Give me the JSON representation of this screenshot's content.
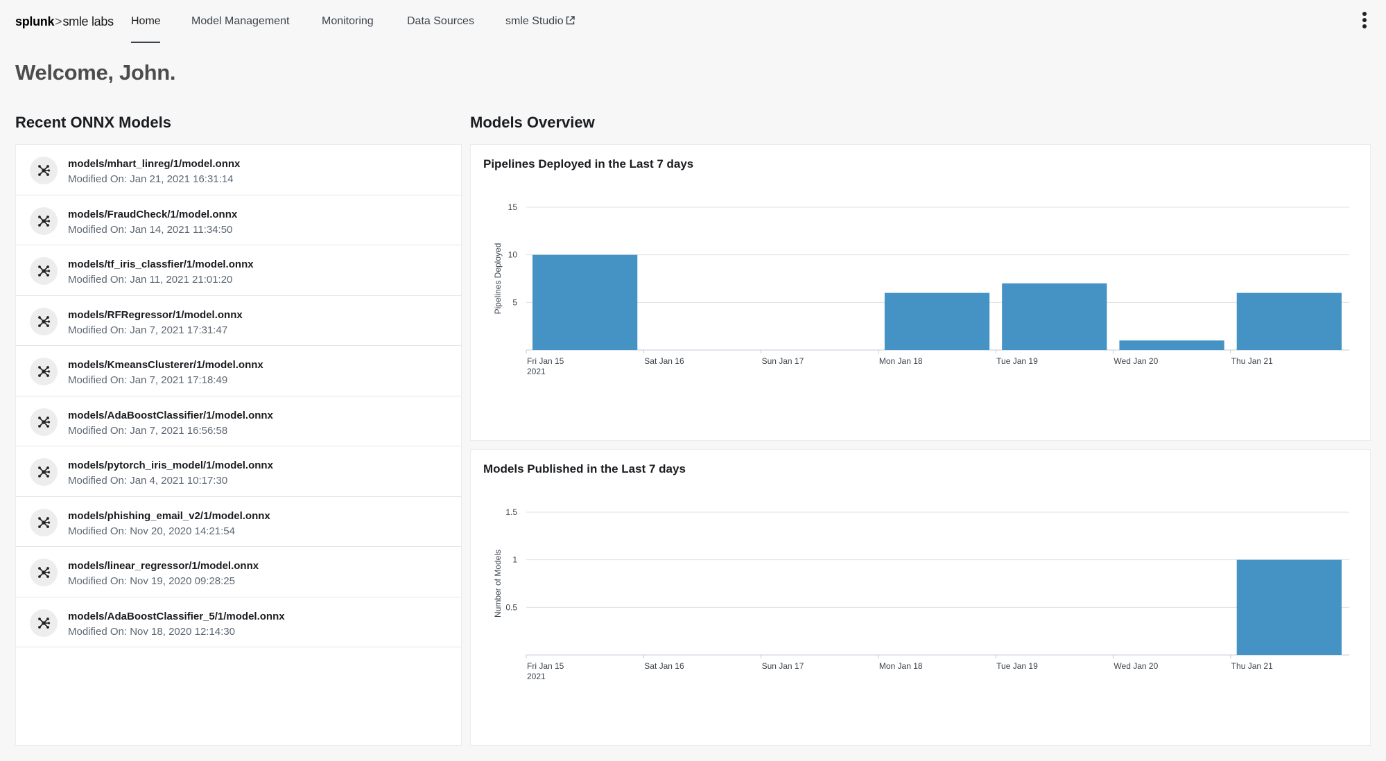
{
  "brand": {
    "name_bold": "splunk",
    "separator": ">",
    "name_rest": "smle labs"
  },
  "nav": {
    "items": [
      {
        "label": "Home",
        "active": true
      },
      {
        "label": "Model Management"
      },
      {
        "label": "Monitoring"
      },
      {
        "label": "Data Sources"
      },
      {
        "label": "smle Studio",
        "external": true
      }
    ]
  },
  "welcome": "Welcome, John.",
  "recent_models": {
    "title": "Recent ONNX Models",
    "modified_prefix": "Modified On:",
    "items": [
      {
        "name": "models/mhart_linreg/1/model.onnx",
        "modified": "Modified On: Jan 21, 2021 16:31:14"
      },
      {
        "name": "models/FraudCheck/1/model.onnx",
        "modified": "Modified On: Jan 14, 2021 11:34:50"
      },
      {
        "name": "models/tf_iris_classfier/1/model.onnx",
        "modified": "Modified On: Jan 11, 2021 21:01:20"
      },
      {
        "name": "models/RFRegressor/1/model.onnx",
        "modified": "Modified On: Jan 7, 2021 17:31:47"
      },
      {
        "name": "models/KmeansClusterer/1/model.onnx",
        "modified": "Modified On: Jan 7, 2021 17:18:49"
      },
      {
        "name": "models/AdaBoostClassifier/1/model.onnx",
        "modified": "Modified On: Jan 7, 2021 16:56:58"
      },
      {
        "name": "models/pytorch_iris_model/1/model.onnx",
        "modified": "Modified On: Jan 4, 2021 10:17:30"
      },
      {
        "name": "models/phishing_email_v2/1/model.onnx",
        "modified": "Modified On: Nov 20, 2020 14:21:54"
      },
      {
        "name": "models/linear_regressor/1/model.onnx",
        "modified": "Modified On: Nov 19, 2020 09:28:25"
      },
      {
        "name": "models/AdaBoostClassifier_5/1/model.onnx",
        "modified": "Modified On: Nov 18, 2020 12:14:30"
      }
    ]
  },
  "overview": {
    "title": "Models Overview"
  },
  "chart_data": [
    {
      "type": "bar",
      "title": "Pipelines Deployed in the Last 7 days",
      "ylabel": "Pipelines Deployed",
      "xlabel": "",
      "categories": [
        "Fri Jan 15",
        "Sat Jan 16",
        "Sun Jan 17",
        "Mon Jan 18",
        "Tue Jan 19",
        "Wed Jan 20",
        "Thu Jan 21"
      ],
      "first_tick_sublabel": "2021",
      "values": [
        10,
        0,
        0,
        6,
        7,
        1,
        6
      ],
      "yticks": [
        5,
        10,
        15
      ],
      "ylim": [
        0,
        15
      ],
      "color": "#4593c4",
      "grid": true
    },
    {
      "type": "bar",
      "title": "Models Published in the Last 7 days",
      "ylabel": "Number of Models",
      "xlabel": "",
      "categories": [
        "Fri Jan 15",
        "Sat Jan 16",
        "Sun Jan 17",
        "Mon Jan 18",
        "Tue Jan 19",
        "Wed Jan 20",
        "Thu Jan 21"
      ],
      "first_tick_sublabel": "2021",
      "values": [
        0,
        0,
        0,
        0,
        0,
        0,
        1
      ],
      "yticks": [
        0.5,
        1,
        1.5
      ],
      "ylim": [
        0,
        1.5
      ],
      "color": "#4593c4",
      "grid": true
    }
  ]
}
